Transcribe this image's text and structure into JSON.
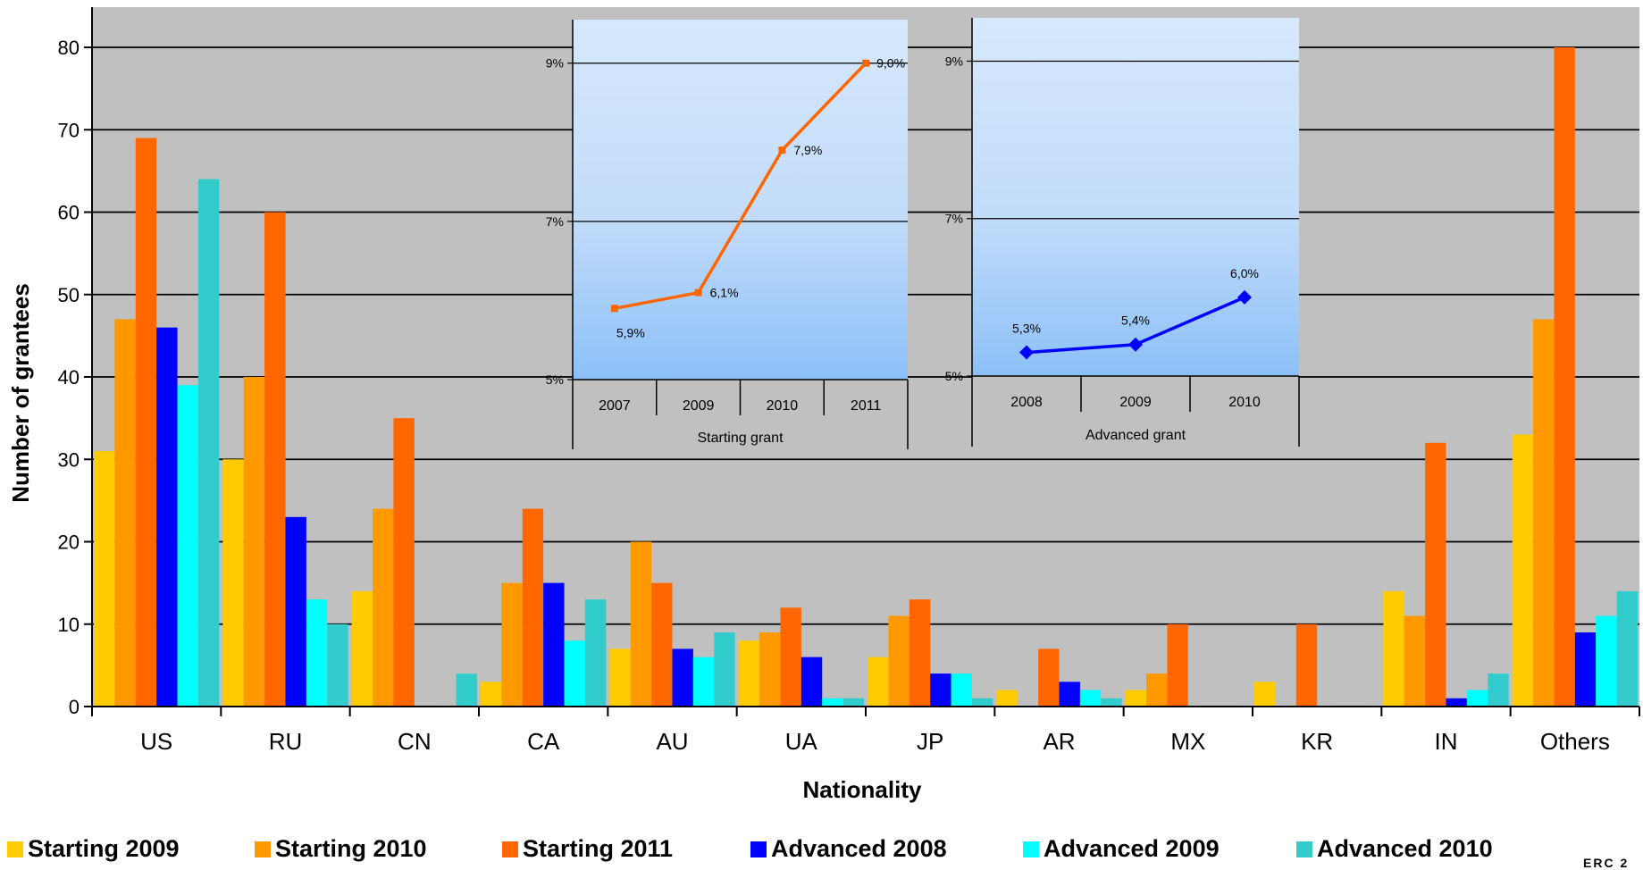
{
  "chart_data": [
    {
      "type": "bar",
      "title": "",
      "xlabel": "Nationality",
      "ylabel": "Number of grantees",
      "ylim": [
        0,
        80
      ],
      "yticks": [
        0,
        10,
        20,
        30,
        40,
        50,
        60,
        70,
        80
      ],
      "grid": true,
      "legend_position": "bottom",
      "categories": [
        "US",
        "RU",
        "CN",
        "CA",
        "AU",
        "UA",
        "JP",
        "AR",
        "MX",
        "KR",
        "IN",
        "Others"
      ],
      "series": [
        {
          "name": "Starting 2009",
          "color": "#FFCC00",
          "values": [
            31,
            30,
            14,
            3,
            7,
            8,
            6,
            2,
            2,
            3,
            14,
            33
          ]
        },
        {
          "name": "Starting 2010",
          "color": "#FF9900",
          "values": [
            47,
            40,
            24,
            15,
            20,
            9,
            11,
            0,
            4,
            0,
            11,
            47
          ]
        },
        {
          "name": "Starting 2011",
          "color": "#FF6600",
          "values": [
            69,
            60,
            35,
            24,
            15,
            12,
            13,
            7,
            10,
            10,
            32,
            80
          ]
        },
        {
          "name": "Advanced 2008",
          "color": "#0000FF",
          "values": [
            46,
            23,
            0,
            15,
            7,
            6,
            4,
            3,
            0,
            0,
            1,
            9
          ]
        },
        {
          "name": "Advanced 2009",
          "color": "#00FFFF",
          "values": [
            39,
            13,
            0,
            8,
            6,
            1,
            4,
            2,
            0,
            0,
            2,
            11
          ]
        },
        {
          "name": "Advanced 2010",
          "color": "#33CCCC",
          "values": [
            64,
            10,
            4,
            13,
            9,
            1,
            1,
            1,
            0,
            0,
            4,
            14
          ]
        }
      ]
    },
    {
      "type": "line",
      "xlabel": "Starting grant",
      "x": [
        "2007",
        "2009",
        "2010",
        "2011"
      ],
      "values": [
        5.9,
        6.1,
        7.9,
        9.0
      ],
      "data_labels": [
        "5,9%",
        "6,1%",
        "7,9%",
        "9,0%"
      ],
      "ylim": [
        5,
        9.55
      ],
      "yticks": [
        5,
        7,
        9
      ],
      "ytick_labels": [
        "5%",
        "7%",
        "9%"
      ],
      "color": "#FF6600",
      "marker": "square"
    },
    {
      "type": "line",
      "xlabel": "Advanced grant",
      "x": [
        "2008",
        "2009",
        "2010"
      ],
      "values": [
        5.3,
        5.4,
        6.0
      ],
      "data_labels": [
        "5,3%",
        "5,4%",
        "6,0%"
      ],
      "ylim": [
        5,
        9.55
      ],
      "yticks": [
        5,
        7,
        9
      ],
      "ytick_labels": [
        "5%",
        "7%",
        "9%"
      ],
      "color": "#0000FF",
      "marker": "diamond"
    }
  ],
  "footer": "ERC 2"
}
